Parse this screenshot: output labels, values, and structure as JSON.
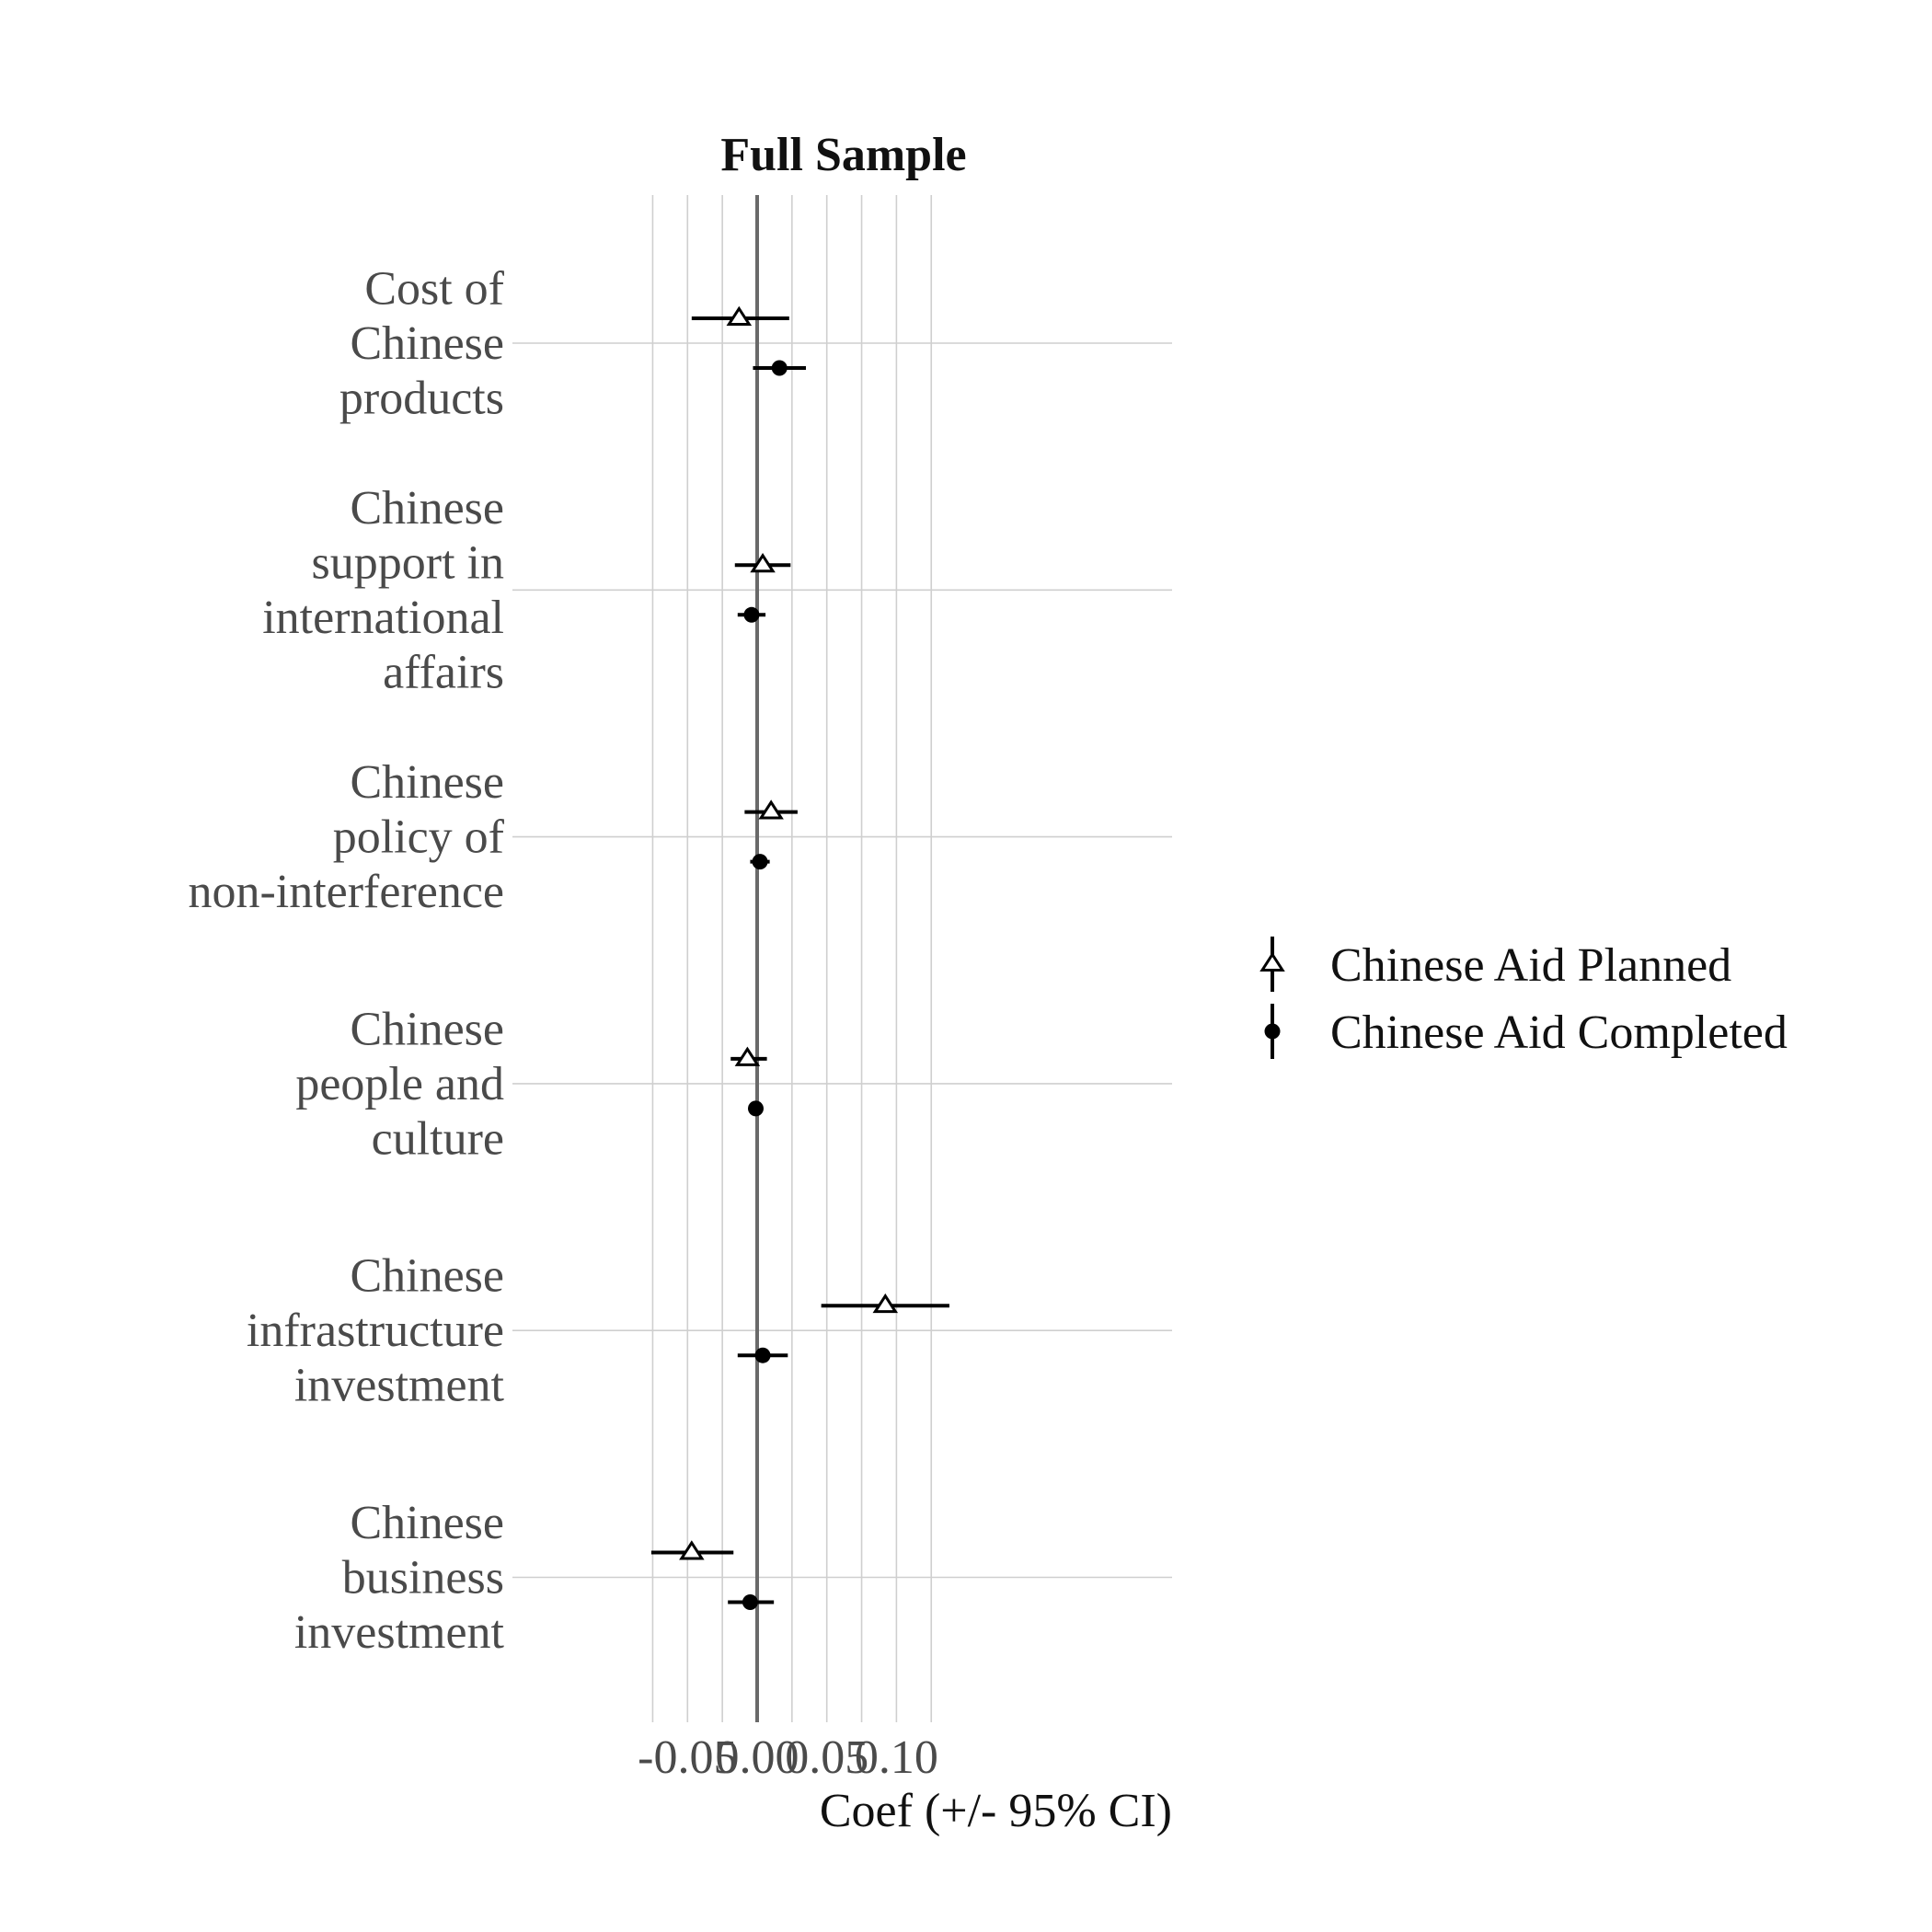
{
  "chart_data": {
    "type": "scatter",
    "subtype": "coefficient-plot-with-error-bars",
    "title": "Full Sample",
    "xlabel": "Coef (+/- 95% CI)",
    "ylabel": "",
    "xlim": [
      -0.075,
      0.149
    ],
    "xticks": [
      -0.05,
      0.0,
      0.05,
      0.1
    ],
    "xtick_labels": [
      "-0.05",
      "0.00",
      "0.05",
      "0.10"
    ],
    "grid": true,
    "zero_line": true,
    "legend_position": "right",
    "categories": [
      "Cost of Chinese products",
      "Chinese support in international affairs",
      "Chinese policy of non-interference",
      "Chinese people and culture",
      "Chinese infrastructure investment",
      "Chinese business investment"
    ],
    "category_label_lines": [
      [
        "Cost of",
        "Chinese",
        "products"
      ],
      [
        "Chinese",
        "support in",
        "international",
        "affairs"
      ],
      [
        "Chinese",
        "policy of",
        "non-interference"
      ],
      [
        "Chinese",
        "people and",
        "culture"
      ],
      [
        "Chinese",
        "infrastructure",
        "investment"
      ],
      [
        "Chinese",
        "business",
        "investment"
      ]
    ],
    "series": [
      {
        "name": "Chinese Aid Planned",
        "marker": "open-triangle",
        "estimate": [
          -0.013,
          0.004,
          0.01,
          -0.007,
          0.092,
          -0.047
        ],
        "ci_low": [
          -0.047,
          -0.016,
          -0.009,
          -0.019,
          0.046,
          -0.076
        ],
        "ci_high": [
          0.023,
          0.024,
          0.029,
          0.007,
          0.138,
          -0.017
        ]
      },
      {
        "name": "Chinese Aid Completed",
        "marker": "filled-circle",
        "estimate": [
          0.016,
          -0.004,
          0.002,
          -0.001,
          0.004,
          -0.005
        ],
        "ci_low": [
          -0.003,
          -0.014,
          -0.005,
          -0.005,
          -0.014,
          -0.021
        ],
        "ci_high": [
          0.035,
          0.006,
          0.009,
          0.004,
          0.022,
          0.012
        ]
      }
    ],
    "colors": {
      "series": "#000000",
      "grid": "#cfcfcf",
      "zero_line": "#6a6a6a",
      "category_text": "#4a4a4a"
    }
  }
}
